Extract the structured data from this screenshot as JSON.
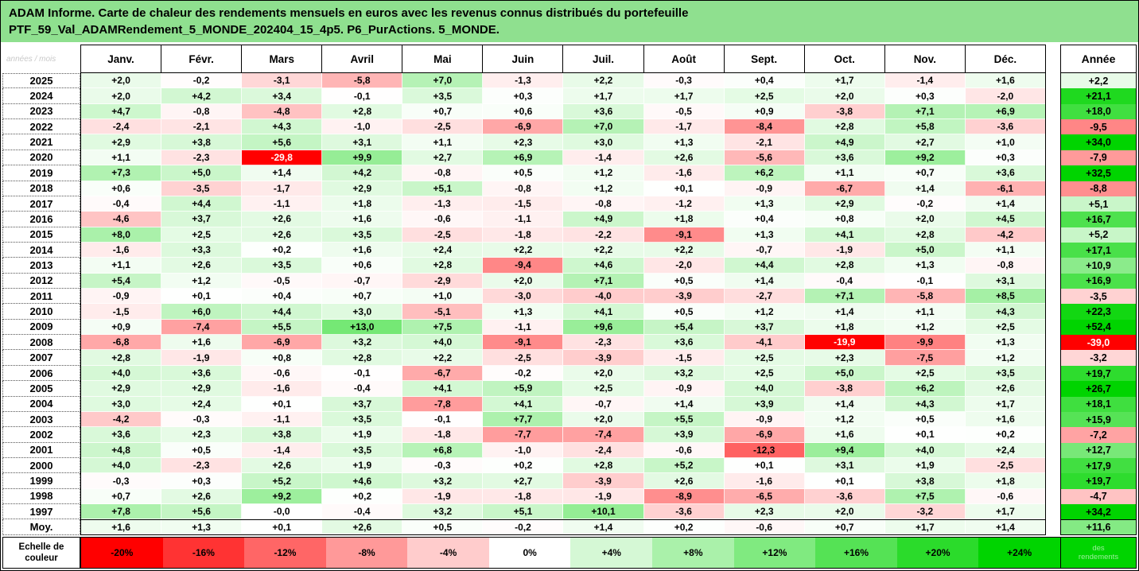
{
  "title": {
    "line1": "ADAM Informe. Carte de chaleur des rendements mensuels en euros avec les revenus connus distribués du portefeuille",
    "line2": "PTF_59_Val_ADAMRendement_5_MONDE_202404_15_4p5. P6_PurActions. 5_MONDE."
  },
  "colors": {
    "banner_bg": "#8fe08f",
    "negative": "#ff0000",
    "positive": "#00d400",
    "neutral": "#ffffff",
    "negative_full": 20,
    "positive_full": 24,
    "deep_negative_text": "#ffffff"
  },
  "table": {
    "corner_label": "années / mois",
    "annual_header": "Année"
  },
  "scale": {
    "label_line1": "Echelle de",
    "label_line2": "couleur",
    "end_cell_text": "des rendements",
    "stops": [
      {
        "label": "-20%",
        "value": -20
      },
      {
        "label": "-16%",
        "value": -16
      },
      {
        "label": "-12%",
        "value": -12
      },
      {
        "label": "-8%",
        "value": -8
      },
      {
        "label": "-4%",
        "value": -4
      },
      {
        "label": "0%",
        "value": 0
      },
      {
        "label": "+4%",
        "value": 4
      },
      {
        "label": "+8%",
        "value": 8
      },
      {
        "label": "+12%",
        "value": 12
      },
      {
        "label": "+16%",
        "value": 16
      },
      {
        "label": "+20%",
        "value": 20
      },
      {
        "label": "+24%",
        "value": 24
      }
    ]
  },
  "chart_data": {
    "type": "heatmap",
    "title": "ADAM Informe. Carte de chaleur des rendements mensuels en euros avec les revenus connus distribués du portefeuille PTF_59_Val_ADAMRendement_5_MONDE_202404_15_4p5. P6_PurActions. 5_MONDE.",
    "unit": "%",
    "x_labels": [
      "Janv.",
      "Févr.",
      "Mars",
      "Avril",
      "Mai",
      "Juin",
      "Juil.",
      "Août",
      "Sept.",
      "Oct.",
      "Nov.",
      "Déc."
    ],
    "annual_header": "Année",
    "y_labels": [
      "2025",
      "2024",
      "2023",
      "2022",
      "2021",
      "2020",
      "2019",
      "2018",
      "2017",
      "2016",
      "2015",
      "2014",
      "2013",
      "2012",
      "2011",
      "2010",
      "2009",
      "2008",
      "2007",
      "2006",
      "2005",
      "2004",
      "2003",
      "2002",
      "2001",
      "2000",
      "1999",
      "1998",
      "1997"
    ],
    "matrix": [
      [
        2.0,
        -0.2,
        -3.1,
        -5.8,
        7.0,
        -1.3,
        2.2,
        -0.3,
        0.4,
        1.7,
        -1.4,
        1.6
      ],
      [
        2.0,
        4.2,
        3.4,
        -0.1,
        3.5,
        0.3,
        1.7,
        1.7,
        2.5,
        2.0,
        0.3,
        -2.0
      ],
      [
        4.7,
        -0.8,
        -4.8,
        2.8,
        0.7,
        0.6,
        3.6,
        -0.5,
        0.9,
        -3.8,
        7.1,
        6.9
      ],
      [
        -2.4,
        -2.1,
        4.3,
        -1.0,
        -2.5,
        -6.9,
        7.0,
        -1.7,
        -8.4,
        2.8,
        5.8,
        -3.6
      ],
      [
        2.9,
        3.8,
        5.6,
        3.1,
        1.1,
        2.3,
        3.0,
        1.3,
        -2.1,
        4.9,
        2.7,
        1.0
      ],
      [
        1.1,
        -2.3,
        -29.8,
        9.9,
        2.7,
        6.9,
        -1.4,
        2.6,
        -5.6,
        3.6,
        9.2,
        0.3
      ],
      [
        7.3,
        5.0,
        1.4,
        4.2,
        -0.8,
        0.5,
        1.2,
        -1.6,
        6.2,
        1.1,
        0.7,
        3.6
      ],
      [
        0.6,
        -3.5,
        -1.7,
        2.9,
        5.1,
        -0.8,
        1.2,
        0.1,
        -0.9,
        -6.7,
        1.4,
        -6.1
      ],
      [
        -0.4,
        4.4,
        -1.1,
        1.8,
        -1.3,
        -1.5,
        -0.8,
        -1.2,
        1.3,
        2.9,
        -0.2,
        1.4
      ],
      [
        -4.6,
        3.7,
        2.6,
        1.6,
        -0.6,
        -1.1,
        4.9,
        1.8,
        0.4,
        0.8,
        2.0,
        4.5
      ],
      [
        8.0,
        2.5,
        2.6,
        3.5,
        -2.5,
        -1.8,
        -2.2,
        -9.1,
        1.3,
        4.1,
        2.8,
        -4.2
      ],
      [
        -1.6,
        3.3,
        0.2,
        1.6,
        2.4,
        2.2,
        2.2,
        2.2,
        -0.7,
        -1.9,
        5.0,
        1.1
      ],
      [
        1.1,
        2.6,
        3.5,
        0.6,
        2.8,
        -9.4,
        4.6,
        -2.0,
        4.4,
        2.8,
        1.3,
        -0.8
      ],
      [
        5.4,
        1.2,
        -0.5,
        -0.7,
        -2.9,
        2.0,
        7.1,
        0.5,
        1.4,
        -0.4,
        -0.1,
        3.1
      ],
      [
        -0.9,
        0.1,
        0.4,
        0.7,
        1.0,
        -3.0,
        -4.0,
        -3.9,
        -2.7,
        7.1,
        -5.8,
        8.5
      ],
      [
        -1.5,
        6.0,
        4.4,
        3.0,
        -5.1,
        1.3,
        4.1,
        0.5,
        1.2,
        1.4,
        1.1,
        4.3
      ],
      [
        0.9,
        -7.4,
        5.5,
        13.0,
        7.5,
        -1.1,
        9.6,
        5.4,
        3.7,
        1.8,
        1.2,
        2.5
      ],
      [
        -6.8,
        1.6,
        -6.9,
        3.2,
        4.0,
        -9.1,
        -2.3,
        3.6,
        -4.1,
        -19.9,
        -9.9,
        1.3
      ],
      [
        2.8,
        -1.9,
        0.8,
        2.8,
        2.2,
        -2.5,
        -3.9,
        -1.5,
        2.5,
        2.3,
        -7.5,
        1.2
      ],
      [
        4.0,
        3.6,
        -0.6,
        -0.1,
        -6.7,
        -0.2,
        2.0,
        3.2,
        2.5,
        5.0,
        2.5,
        3.5
      ],
      [
        2.9,
        2.9,
        -1.6,
        -0.4,
        4.1,
        5.9,
        2.5,
        -0.9,
        4.0,
        -3.8,
        6.2,
        2.6
      ],
      [
        3.0,
        2.4,
        0.1,
        3.7,
        -7.8,
        4.1,
        -0.7,
        1.4,
        3.9,
        1.4,
        4.3,
        1.7
      ],
      [
        -4.2,
        -0.3,
        -1.1,
        3.5,
        -0.1,
        7.7,
        2.0,
        5.5,
        -0.9,
        1.2,
        0.5,
        1.6
      ],
      [
        3.6,
        2.3,
        3.8,
        1.9,
        -1.8,
        -7.7,
        -7.4,
        3.9,
        -6.9,
        1.6,
        0.1,
        0.2
      ],
      [
        4.8,
        0.5,
        -1.4,
        3.5,
        6.8,
        -1.0,
        -2.4,
        -0.6,
        -12.3,
        9.4,
        4.0,
        2.4
      ],
      [
        4.0,
        -2.3,
        2.6,
        1.9,
        -0.3,
        0.2,
        2.8,
        5.2,
        0.1,
        3.1,
        1.9,
        -2.5
      ],
      [
        -0.3,
        0.3,
        5.2,
        4.6,
        3.2,
        2.7,
        -3.9,
        2.6,
        -1.6,
        0.1,
        3.8,
        1.8
      ],
      [
        0.7,
        2.6,
        9.2,
        0.2,
        -1.9,
        -1.8,
        -1.9,
        -8.9,
        -6.5,
        -3.6,
        7.5,
        -0.6
      ],
      [
        7.8,
        5.6,
        -0.0,
        -0.4,
        3.2,
        5.1,
        10.1,
        -3.6,
        2.3,
        2.0,
        -3.2,
        1.7
      ]
    ],
    "annual": [
      2.2,
      21.1,
      18.0,
      -9.5,
      34.0,
      -7.9,
      32.5,
      -8.8,
      5.1,
      16.7,
      5.2,
      17.1,
      10.9,
      16.9,
      -3.5,
      22.3,
      52.4,
      -39.0,
      -3.2,
      19.7,
      26.7,
      18.1,
      15.9,
      -7.2,
      12.7,
      17.9,
      19.7,
      -4.7,
      34.2
    ],
    "average_row": {
      "label": "Moy.",
      "values": [
        1.6,
        1.3,
        0.1,
        2.6,
        0.5,
        -0.2,
        1.4,
        0.2,
        -0.6,
        0.7,
        1.7,
        1.4
      ],
      "annual": 11.6
    },
    "color_scale": {
      "stops_percent": [
        -20,
        -16,
        -12,
        -8,
        -4,
        0,
        4,
        8,
        12,
        16,
        20,
        24
      ],
      "negative_color": "#ff0000",
      "positive_color": "#00d400",
      "neutral_color": "#ffffff",
      "legend_position": "bottom"
    }
  }
}
